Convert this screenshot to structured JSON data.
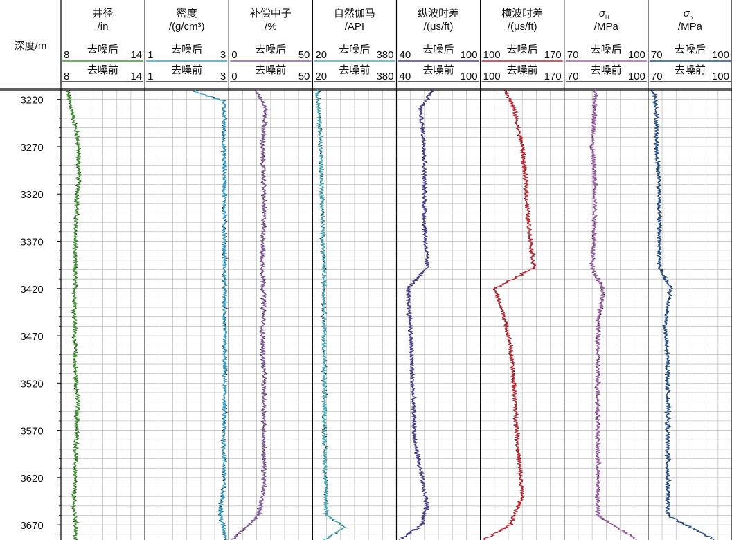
{
  "depth_axis": {
    "label": "深度/m",
    "ticks": [
      "3220",
      "3270",
      "3320",
      "3370",
      "3420",
      "3470",
      "3520",
      "3570",
      "3620",
      "3670"
    ]
  },
  "labels": {
    "after": "去噪后",
    "before": "去噪前"
  },
  "tracks": [
    {
      "title": "井径",
      "unit": "/in",
      "min": "8",
      "max": "14",
      "color": "#3a9a2a"
    },
    {
      "title": "密度",
      "unit": "/(g/cm³)",
      "min": "1",
      "max": "3",
      "color": "#27a7d8"
    },
    {
      "title": "补偿中子",
      "unit": "/%",
      "min": "0",
      "max": "50",
      "color": "#8a5aa8"
    },
    {
      "title": "自然伽马",
      "unit": "/API",
      "min": "20",
      "max": "380",
      "color": "#3db2c2"
    },
    {
      "title": "纵波时差",
      "unit": "/(μs/ft)",
      "min": "40",
      "max": "100",
      "color": "#4b3d9a"
    },
    {
      "title": "横波时差",
      "unit": "/(μs/ft)",
      "min": "100",
      "max": "170",
      "color": "#d21f2a"
    },
    {
      "title": "σ",
      "sub": "H",
      "unit": "/MPa",
      "min": "70",
      "max": "100",
      "color": "#a45cb0"
    },
    {
      "title": "σ",
      "sub": "h",
      "unit": "/MPa",
      "min": "70",
      "max": "100",
      "color": "#1f4e8f"
    }
  ],
  "chart_data": {
    "type": "line",
    "depth_range": [
      3210,
      3686
    ],
    "depth_ticks": [
      3220,
      3270,
      3320,
      3370,
      3420,
      3470,
      3520,
      3570,
      3620,
      3670
    ],
    "series": [
      {
        "track": "井径",
        "range": [
          8,
          14
        ],
        "depths": [
          3212,
          3220,
          3260,
          3300,
          3340,
          3380,
          3420,
          3460,
          3500,
          3540,
          3580,
          3620,
          3650,
          3670,
          3686
        ],
        "values": [
          8.5,
          8.6,
          9.2,
          9.3,
          9.1,
          9.0,
          9.0,
          9.0,
          9.0,
          9.2,
          9.1,
          9.0,
          8.9,
          9.1,
          9.0
        ]
      },
      {
        "track": "密度",
        "range": [
          1,
          3
        ],
        "depths": [
          3212,
          3222,
          3260,
          3300,
          3340,
          3380,
          3420,
          3460,
          3500,
          3540,
          3580,
          3620,
          3660,
          3686
        ],
        "values": [
          2.2,
          2.9,
          2.88,
          2.9,
          2.9,
          2.9,
          2.9,
          2.9,
          2.9,
          2.9,
          2.88,
          2.9,
          2.8,
          2.95
        ]
      },
      {
        "track": "补偿中子",
        "range": [
          0,
          50
        ],
        "depths": [
          3212,
          3230,
          3270,
          3310,
          3350,
          3390,
          3430,
          3470,
          3510,
          3550,
          3590,
          3630,
          3660,
          3686
        ],
        "values": [
          17,
          22,
          20,
          21,
          21,
          20,
          21,
          20,
          21,
          21,
          21,
          21,
          18,
          2
        ]
      },
      {
        "track": "自然伽马",
        "range": [
          20,
          380
        ],
        "depths": [
          3212,
          3230,
          3270,
          3320,
          3370,
          3420,
          3470,
          3520,
          3570,
          3620,
          3660,
          3672,
          3686
        ],
        "values": [
          40,
          45,
          55,
          60,
          65,
          70,
          70,
          70,
          72,
          75,
          80,
          160,
          70
        ]
      },
      {
        "track": "纵波时差",
        "range": [
          40,
          100
        ],
        "depths": [
          3212,
          3230,
          3270,
          3310,
          3350,
          3398,
          3420,
          3460,
          3500,
          3540,
          3580,
          3620,
          3650,
          3670,
          3686
        ],
        "values": [
          65,
          57,
          60,
          60,
          60,
          62,
          48,
          50,
          51,
          52,
          53,
          58,
          62,
          58,
          42
        ]
      },
      {
        "track": "横波时差",
        "range": [
          100,
          170
        ],
        "depths": [
          3212,
          3230,
          3270,
          3310,
          3350,
          3398,
          3420,
          3450,
          3480,
          3520,
          3560,
          3600,
          3640,
          3670,
          3686
        ],
        "values": [
          122,
          128,
          135,
          138,
          140,
          145,
          112,
          120,
          125,
          128,
          130,
          132,
          135,
          125,
          102
        ]
      },
      {
        "track": "σH",
        "range": [
          70,
          100
        ],
        "depths": [
          3212,
          3230,
          3270,
          3310,
          3350,
          3398,
          3420,
          3460,
          3500,
          3540,
          3580,
          3620,
          3660,
          3686
        ],
        "values": [
          81,
          81,
          80,
          81,
          81,
          80,
          84,
          82,
          82,
          82,
          82,
          82,
          82,
          96
        ]
      },
      {
        "track": "σh",
        "range": [
          70,
          100
        ],
        "depths": [
          3212,
          3230,
          3270,
          3310,
          3350,
          3398,
          3420,
          3460,
          3500,
          3540,
          3580,
          3620,
          3660,
          3686
        ],
        "values": [
          72,
          73,
          73,
          74,
          74,
          74,
          78,
          76,
          77,
          77,
          77,
          77,
          77,
          94
        ]
      }
    ]
  }
}
